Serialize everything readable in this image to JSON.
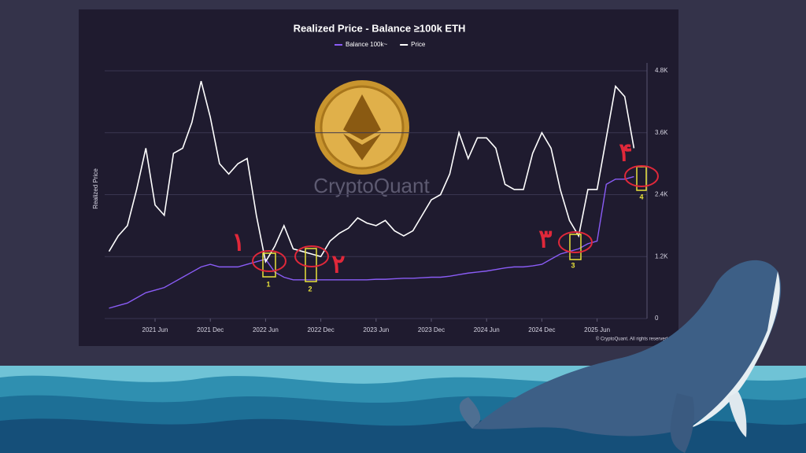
{
  "chart_data": {
    "type": "line",
    "title": "Realized Price - Balance ≥100k ETH",
    "y_label": "Realized Price",
    "watermark": "CryptoQuant",
    "copyright": "© CryptoQuant. All rights reserved",
    "x": [
      "2021 Jan",
      "2021 Feb",
      "2021 Mar",
      "2021 Apr",
      "2021 May",
      "2021 Jun",
      "2021 Jul",
      "2021 Aug",
      "2021 Sep",
      "2021 Oct",
      "2021 Nov",
      "2021 Dec",
      "2022 Jan",
      "2022 Feb",
      "2022 Mar",
      "2022 Apr",
      "2022 May",
      "2022 Jun",
      "2022 Jul",
      "2022 Aug",
      "2022 Sep",
      "2022 Oct",
      "2022 Nov",
      "2022 Dec",
      "2023 Jan",
      "2023 Feb",
      "2023 Mar",
      "2023 Apr",
      "2023 May",
      "2023 Jun",
      "2023 Jul",
      "2023 Aug",
      "2023 Sep",
      "2023 Oct",
      "2023 Nov",
      "2023 Dec",
      "2024 Jan",
      "2024 Feb",
      "2024 Mar",
      "2024 Apr",
      "2024 May",
      "2024 Jun",
      "2024 Jul",
      "2024 Aug",
      "2024 Sep",
      "2024 Oct",
      "2024 Nov",
      "2024 Dec",
      "2025 Jan",
      "2025 Feb",
      "2025 Mar",
      "2025 Apr",
      "2025 May",
      "2025 Jun",
      "2025 Jul",
      "2025 Aug",
      "2025 Sep",
      "2025 Oct"
    ],
    "xticks": [
      "2021 Jun",
      "2021 Dec",
      "2022 Jun",
      "2022 Dec",
      "2023 Jun",
      "2023 Dec",
      "2024 Jun",
      "2024 Dec",
      "2025 Jun"
    ],
    "series": [
      {
        "name": "Balance 100k~",
        "color": "#8a5cf6",
        "values": [
          200,
          250,
          300,
          400,
          500,
          550,
          600,
          700,
          800,
          900,
          1000,
          1050,
          1000,
          1000,
          1000,
          1050,
          1100,
          1150,
          900,
          800,
          750,
          750,
          750,
          750,
          750,
          750,
          750,
          750,
          750,
          760,
          760,
          770,
          780,
          780,
          790,
          800,
          800,
          820,
          850,
          880,
          900,
          920,
          950,
          980,
          1000,
          1000,
          1020,
          1050,
          1150,
          1250,
          1300,
          1350,
          1450,
          1500,
          2600,
          2700,
          2700,
          2750
        ]
      },
      {
        "name": "Price",
        "color": "#ffffff",
        "values": [
          1300,
          1600,
          1800,
          2500,
          3300,
          2200,
          2000,
          3200,
          3300,
          3800,
          4600,
          3900,
          3000,
          2800,
          3000,
          3100,
          2000,
          1100,
          1400,
          1800,
          1350,
          1300,
          1250,
          1200,
          1500,
          1650,
          1750,
          1950,
          1850,
          1800,
          1900,
          1700,
          1600,
          1700,
          2000,
          2300,
          2400,
          2800,
          3600,
          3100,
          3500,
          3500,
          3300,
          2600,
          2500,
          2500,
          3200,
          3600,
          3300,
          2500,
          1900,
          1600,
          2500,
          2500,
          3500,
          4500,
          4300,
          3300
        ]
      }
    ],
    "ylim": [
      0,
      4800
    ],
    "yticks": [
      0,
      {
        "value": 1200,
        "label": "1.2K"
      },
      {
        "value": 2400,
        "label": "2.4K"
      },
      {
        "value": 3600,
        "label": "3.6K"
      },
      {
        "value": 4800,
        "label": "4.8K"
      }
    ],
    "grid": true,
    "annotations": [
      "۱",
      "۲",
      "۳",
      "۴"
    ],
    "box_labels": [
      "1",
      "2",
      "3",
      "4"
    ]
  }
}
